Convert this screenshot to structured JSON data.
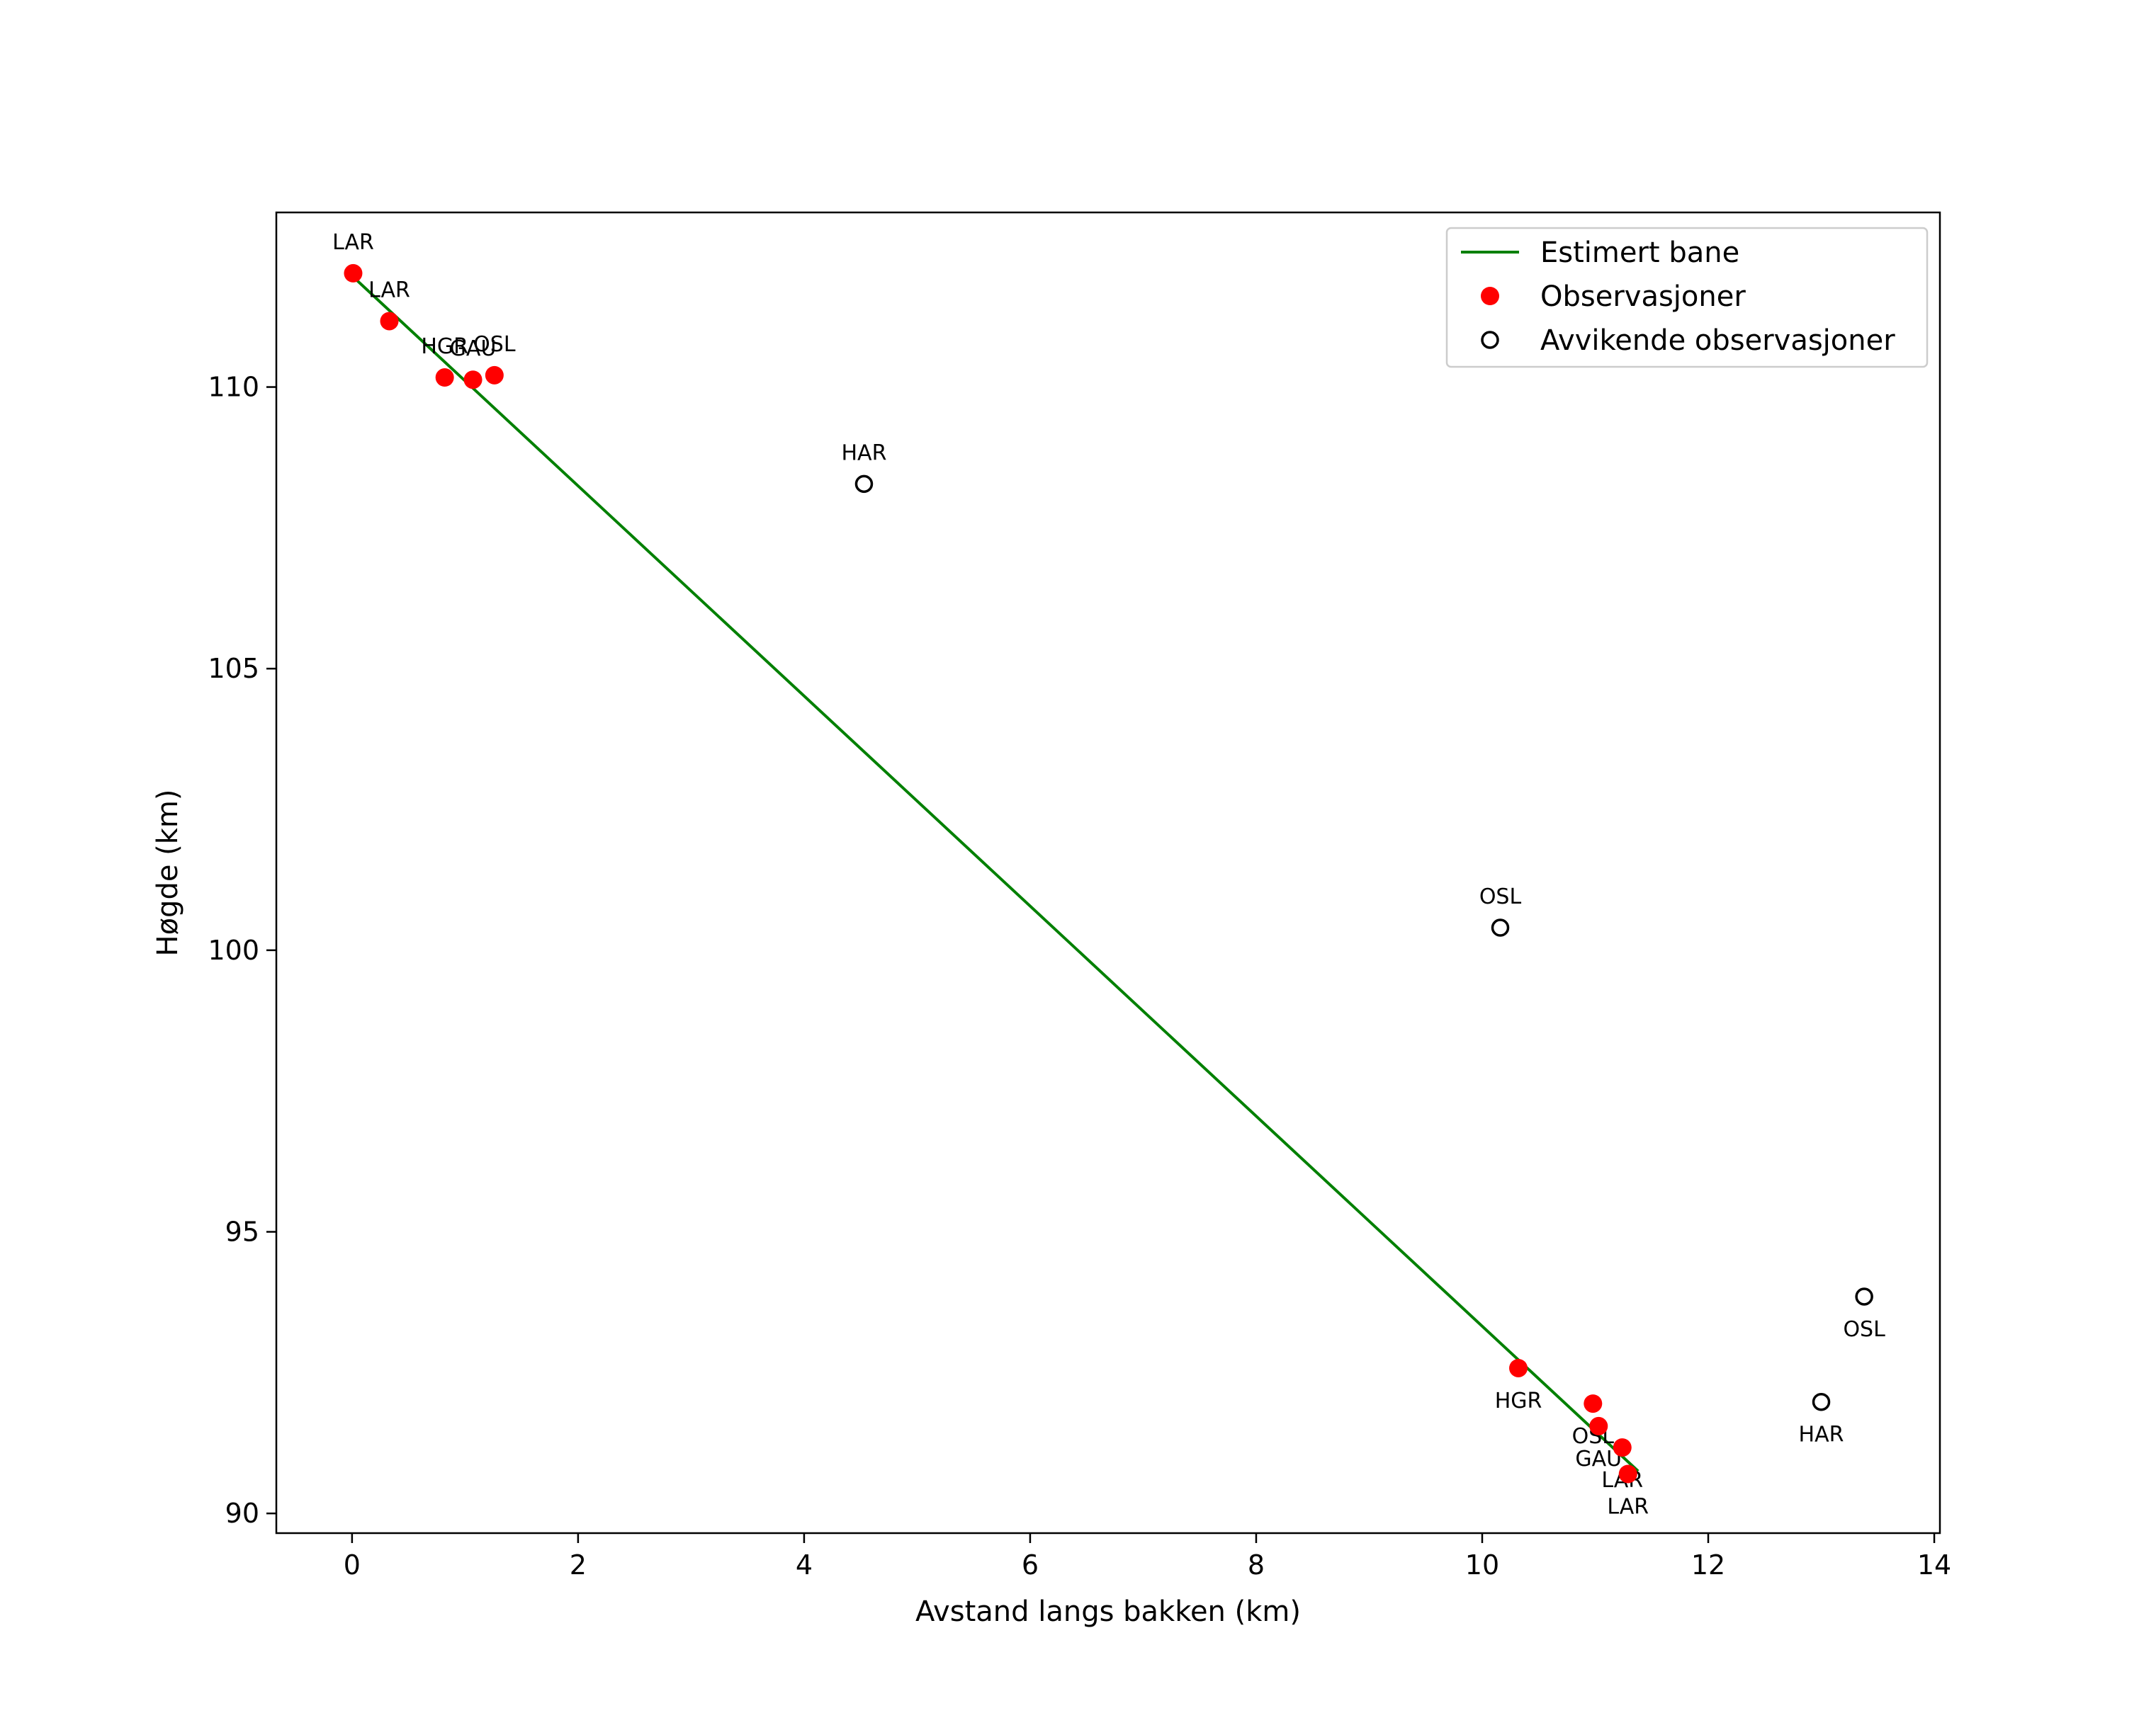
{
  "chart_data": {
    "type": "scatter",
    "xlabel": "Avstand langs bakken (km)",
    "ylabel": "Høgde (km)",
    "xlim": [
      -0.67,
      14.05
    ],
    "ylim": [
      89.65,
      113.1
    ],
    "x_ticks": [
      0,
      2,
      4,
      6,
      8,
      10,
      12,
      14
    ],
    "y_ticks": [
      90,
      95,
      100,
      105,
      110
    ],
    "grid": false,
    "legend_position": "top-right",
    "colors": {
      "line": "#008000",
      "observations": "#ff0000",
      "outliers": "#000000"
    },
    "series": [
      {
        "name": "Estimert bane",
        "kind": "line",
        "points": [
          {
            "x": 0.04,
            "y": 111.9
          },
          {
            "x": 11.38,
            "y": 90.75
          }
        ]
      },
      {
        "name": "Observasjoner",
        "kind": "filled-marker",
        "points": [
          {
            "x": 0.01,
            "y": 112.02,
            "label": "LAR",
            "label_pos": "above"
          },
          {
            "x": 0.33,
            "y": 111.17,
            "label": "LAR",
            "label_pos": "above"
          },
          {
            "x": 0.82,
            "y": 110.17,
            "label": "HGR",
            "label_pos": "above"
          },
          {
            "x": 1.07,
            "y": 110.13,
            "label": "GAU",
            "label_pos": "above"
          },
          {
            "x": 1.26,
            "y": 110.21,
            "label": "OSL",
            "label_pos": "above"
          },
          {
            "x": 10.32,
            "y": 92.58,
            "label": "HGR",
            "label_pos": "below"
          },
          {
            "x": 10.98,
            "y": 91.95,
            "label": "OSL",
            "label_pos": "below"
          },
          {
            "x": 11.03,
            "y": 91.55,
            "label": "GAU",
            "label_pos": "below"
          },
          {
            "x": 11.24,
            "y": 91.17,
            "label": "LAR",
            "label_pos": "below"
          },
          {
            "x": 11.29,
            "y": 90.7,
            "label": "LAR",
            "label_pos": "below"
          }
        ]
      },
      {
        "name": "Avvikende observasjoner",
        "kind": "open-marker",
        "points": [
          {
            "x": 4.53,
            "y": 108.28,
            "label": "HAR",
            "label_pos": "above"
          },
          {
            "x": 10.16,
            "y": 100.4,
            "label": "OSL",
            "label_pos": "above"
          },
          {
            "x": 13.0,
            "y": 91.98,
            "label": "HAR",
            "label_pos": "below"
          },
          {
            "x": 13.38,
            "y": 93.85,
            "label": "OSL",
            "label_pos": "below"
          }
        ]
      }
    ]
  }
}
